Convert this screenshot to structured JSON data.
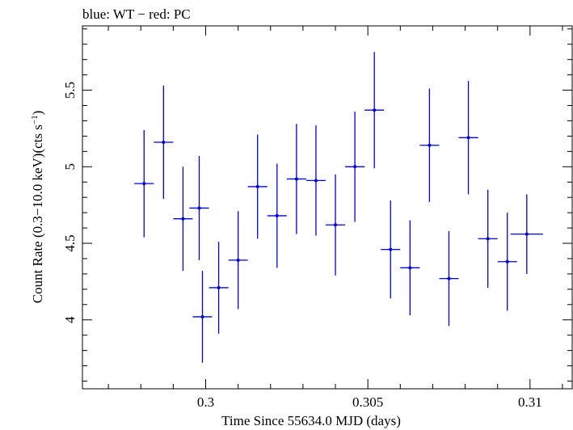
{
  "chart_data": {
    "type": "scatter",
    "title": "blue: WT − red: PC",
    "xlabel": "Time Since 55634.0 MJD (days)",
    "ylabel_main": "Count Rate (0.3−10.0 keV)(cts s",
    "ylabel_sup": "−1",
    "ylabel_close": ")",
    "xlim": [
      0.2962,
      0.3113
    ],
    "ylim": [
      3.55,
      5.92
    ],
    "x_ticks": [
      0.3,
      0.305,
      0.31
    ],
    "x_tick_labels": [
      "0.3",
      "0.305",
      "0.31"
    ],
    "x_minor_step": 0.001,
    "y_ticks": [
      4,
      4.5,
      5,
      5.5
    ],
    "y_tick_labels": [
      "4",
      "4.5",
      "5",
      "5.5"
    ],
    "y_minor_step": 0.1,
    "grid": false,
    "colors": {
      "series": "#0000dd",
      "axes": "#000000"
    },
    "series": [
      {
        "x": [
          0.2981,
          0.2987,
          0.2993,
          0.2998,
          0.2999,
          0.3004,
          0.301,
          0.3016,
          0.3022,
          0.3028,
          0.3034,
          0.304,
          0.3046,
          0.3052,
          0.3057,
          0.3063,
          0.3069,
          0.3075,
          0.3081,
          0.3087,
          0.3093,
          0.3099
        ],
        "y": [
          4.89,
          5.16,
          4.66,
          4.73,
          4.02,
          4.21,
          4.39,
          4.87,
          4.68,
          4.92,
          4.91,
          4.62,
          5.0,
          5.37,
          4.46,
          4.34,
          5.14,
          4.27,
          5.19,
          4.53,
          4.38,
          4.56
        ],
        "xerr": [
          0.0003,
          0.0003,
          0.0003,
          0.0003,
          0.0003,
          0.0003,
          0.0003,
          0.0003,
          0.0003,
          0.0003,
          0.0003,
          0.0003,
          0.0003,
          0.0003,
          0.0003,
          0.0003,
          0.0003,
          0.0003,
          0.0003,
          0.0003,
          0.0003,
          0.0005
        ],
        "yerr": [
          0.35,
          0.37,
          0.34,
          0.34,
          0.3,
          0.3,
          0.32,
          0.34,
          0.34,
          0.36,
          0.36,
          0.33,
          0.36,
          0.38,
          0.32,
          0.31,
          0.37,
          0.31,
          0.37,
          0.32,
          0.32,
          0.26
        ]
      }
    ]
  }
}
